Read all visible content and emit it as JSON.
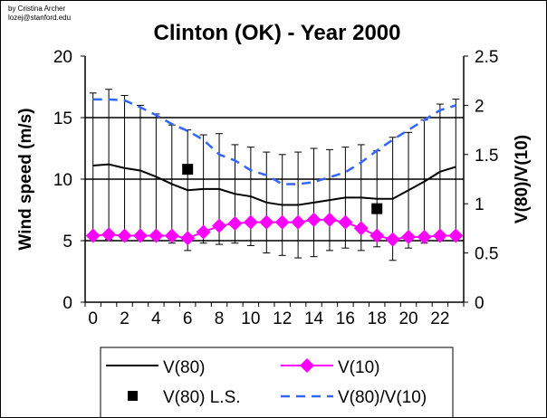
{
  "credit": {
    "author": "by Cristina Archer",
    "email": "lozej@stanford.edu"
  },
  "chart_data": {
    "type": "line",
    "title": "Clinton (OK) - Year 2000",
    "xlabel": "",
    "ylabel": "Wind speed (m/s)",
    "y2label": "V(80)/V(10)",
    "x": [
      0,
      1,
      2,
      3,
      4,
      5,
      6,
      7,
      8,
      9,
      10,
      11,
      12,
      13,
      14,
      15,
      16,
      17,
      18,
      19,
      20,
      21,
      22,
      23
    ],
    "x_tick_labels": [
      "0",
      "2",
      "4",
      "6",
      "8",
      "10",
      "12",
      "14",
      "16",
      "18",
      "20",
      "22"
    ],
    "ylim": [
      0,
      20
    ],
    "y_tick_labels": [
      "0",
      "5",
      "10",
      "15",
      "20"
    ],
    "y2lim": [
      0,
      2.5
    ],
    "y2_tick_labels": [
      "0",
      "0.5",
      "1",
      "1.5",
      "2",
      "2.5"
    ],
    "grid": "horizontal major lines on primary axis",
    "legend_position": "bottom",
    "series": [
      {
        "name": "V(80)",
        "axis": "left",
        "style": "solid-line",
        "color": "#000000",
        "values": [
          11.1,
          11.2,
          10.9,
          10.7,
          10.2,
          9.6,
          9.1,
          9.2,
          9.2,
          8.8,
          8.6,
          8.1,
          7.9,
          7.9,
          8.1,
          8.3,
          8.5,
          8.5,
          8.4,
          8.4,
          9.1,
          9.8,
          10.6,
          11.0
        ],
        "error_sd": [
          5.9,
          6.1,
          5.9,
          5.3,
          5.1,
          4.8,
          4.9,
          4.4,
          4.5,
          4.0,
          4.0,
          4.1,
          4.1,
          4.3,
          4.4,
          4.1,
          4.1,
          4.3,
          3.9,
          5.0,
          4.7,
          5.0,
          5.5,
          5.5
        ]
      },
      {
        "name": "V(10)",
        "axis": "left",
        "style": "line-diamond",
        "color": "#ff00ff",
        "values": [
          5.4,
          5.5,
          5.4,
          5.4,
          5.4,
          5.4,
          5.2,
          5.7,
          6.2,
          6.4,
          6.5,
          6.5,
          6.5,
          6.5,
          6.7,
          6.7,
          6.5,
          6.0,
          5.4,
          5.1,
          5.3,
          5.3,
          5.4,
          5.4
        ]
      },
      {
        "name": "V(80) L.S.",
        "axis": "left",
        "style": "square-marker",
        "color": "#000000",
        "points": [
          {
            "x": 6,
            "y": 10.8
          },
          {
            "x": 18,
            "y": 7.6
          }
        ]
      },
      {
        "name": "V(80)/V(10)",
        "axis": "right",
        "style": "dashed-line",
        "color": "#3366ff",
        "values": [
          2.06,
          2.06,
          2.05,
          1.98,
          1.9,
          1.81,
          1.74,
          1.65,
          1.5,
          1.44,
          1.34,
          1.29,
          1.2,
          1.2,
          1.22,
          1.27,
          1.32,
          1.42,
          1.54,
          1.65,
          1.75,
          1.85,
          1.95,
          2.0
        ]
      }
    ]
  }
}
